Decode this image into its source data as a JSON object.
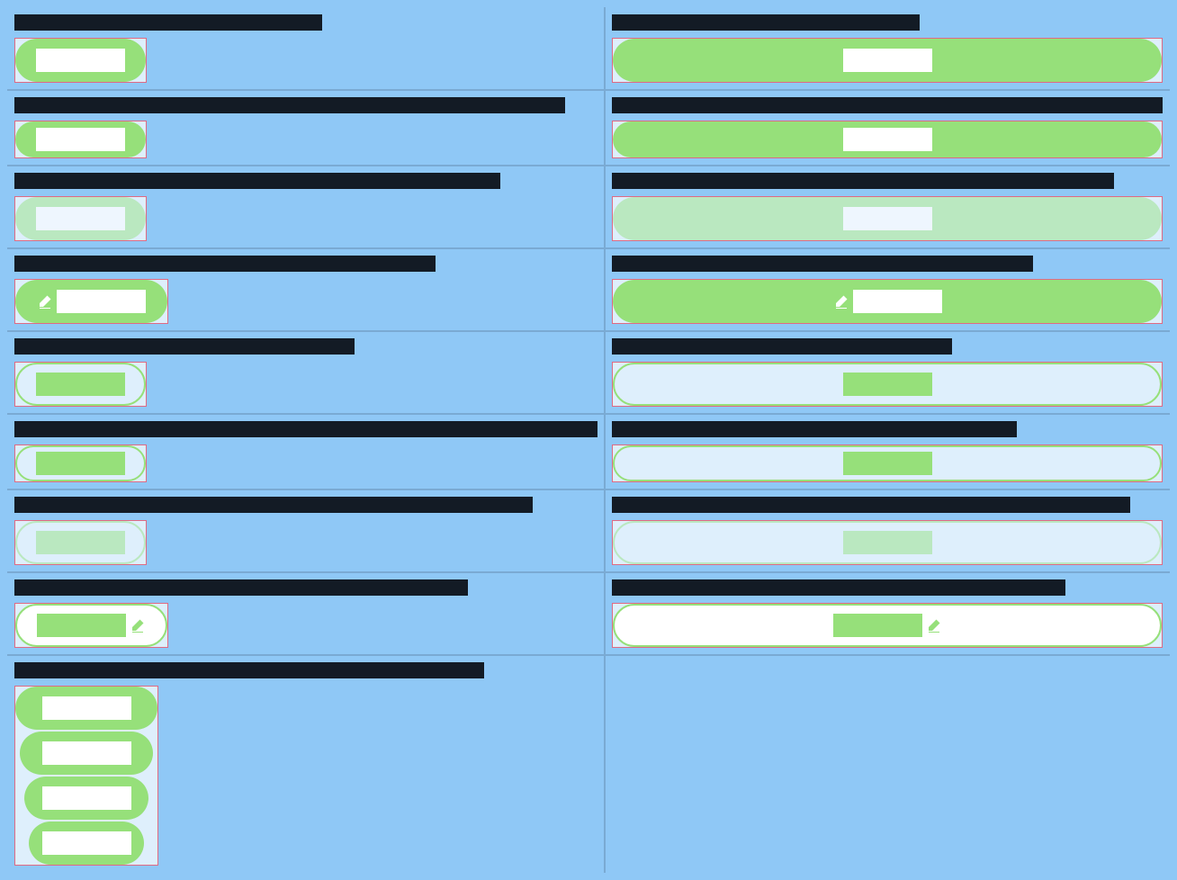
{
  "colors": {
    "background": "#8fc8f6",
    "label_bar": "#131b25",
    "button_green": "#96e07a",
    "button_green_disabled": "#bae8c0",
    "frame_border": "#e06a83",
    "frame_fill": "#deeffc",
    "grid_line": "#7aaad3"
  },
  "rows": [
    {
      "left": {
        "variant": "filled"
      },
      "right": {
        "variant": "filled"
      }
    },
    {
      "left": {
        "variant": "filled"
      },
      "right": {
        "variant": "filled"
      }
    },
    {
      "left": {
        "variant": "filled",
        "state": "disabled"
      },
      "right": {
        "variant": "filled",
        "state": "disabled"
      }
    },
    {
      "left": {
        "variant": "filled",
        "icon": "pencil-icon"
      },
      "right": {
        "variant": "filled",
        "icon": "pencil-icon"
      }
    },
    {
      "left": {
        "variant": "outlined"
      },
      "right": {
        "variant": "outlined"
      }
    },
    {
      "left": {
        "variant": "outlined"
      },
      "right": {
        "variant": "outlined"
      }
    },
    {
      "left": {
        "variant": "outlined",
        "state": "disabled"
      },
      "right": {
        "variant": "outlined",
        "state": "disabled"
      }
    },
    {
      "left": {
        "variant": "outlined",
        "icon": "pencil-icon"
      },
      "right": {
        "variant": "outlined",
        "icon": "pencil-icon"
      }
    }
  ],
  "stack": {
    "variant": "filled",
    "count": 4
  }
}
